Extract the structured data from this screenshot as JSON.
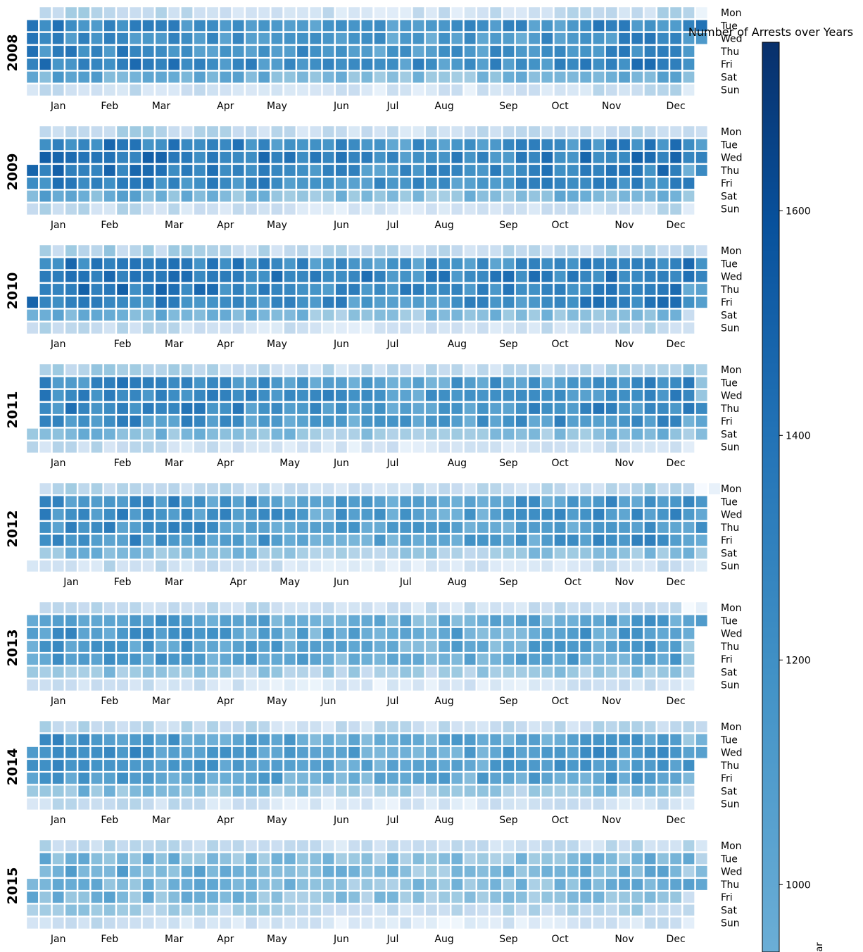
{
  "chart_data": {
    "type": "heatmap",
    "title": "Number of Arrests over Years",
    "colorbar_label": "ar",
    "colormap": [
      "#f7fbff",
      "#deebf7",
      "#c6dbef",
      "#9ecae1",
      "#6baed6",
      "#4292c6",
      "#2171b5",
      "#08519c",
      "#08306b"
    ],
    "value_range": [
      940,
      1750
    ],
    "colorbar_ticks": [
      1000,
      1200,
      1400,
      1600
    ],
    "weekday_labels": [
      "Mon",
      "Tue",
      "Wed",
      "Thu",
      "Fri",
      "Sat",
      "Sun"
    ],
    "month_labels": [
      "Jan",
      "Feb",
      "Mar",
      "Apr",
      "May",
      "Jun",
      "Jul",
      "Aug",
      "Sep",
      "Oct",
      "Nov",
      "Dec"
    ],
    "grid": false,
    "years": [
      {
        "year": "2008",
        "typical_by_weekday": {
          "Mon": 1060,
          "Tue": 1420,
          "Wed": 1400,
          "Thu": 1410,
          "Fri": 1440,
          "Sat": 1280,
          "Sun": 1030
        }
      },
      {
        "year": "2009",
        "typical_by_weekday": {
          "Mon": 1080,
          "Tue": 1440,
          "Wed": 1480,
          "Thu": 1460,
          "Fri": 1440,
          "Sat": 1260,
          "Sun": 1030
        }
      },
      {
        "year": "2010",
        "typical_by_weekday": {
          "Mon": 1100,
          "Tue": 1450,
          "Wed": 1490,
          "Thu": 1470,
          "Fri": 1450,
          "Sat": 1250,
          "Sun": 1040
        }
      },
      {
        "year": "2011",
        "typical_by_weekday": {
          "Mon": 1090,
          "Tue": 1400,
          "Wed": 1420,
          "Thu": 1420,
          "Fri": 1400,
          "Sat": 1230,
          "Sun": 1030
        }
      },
      {
        "year": "2012",
        "typical_by_weekday": {
          "Mon": 1080,
          "Tue": 1380,
          "Wed": 1380,
          "Thu": 1370,
          "Fri": 1380,
          "Sat": 1210,
          "Sun": 1020
        }
      },
      {
        "year": "2013",
        "typical_by_weekday": {
          "Mon": 1060,
          "Tue": 1330,
          "Wed": 1350,
          "Thu": 1340,
          "Fri": 1330,
          "Sat": 1180,
          "Sun": 1000
        }
      },
      {
        "year": "2014",
        "typical_by_weekday": {
          "Mon": 1080,
          "Tue": 1350,
          "Wed": 1380,
          "Thu": 1360,
          "Fri": 1350,
          "Sat": 1200,
          "Sun": 1020
        }
      },
      {
        "year": "2015",
        "typical_by_weekday": {
          "Mon": 1060,
          "Tue": 1240,
          "Wed": 1260,
          "Thu": 1250,
          "Fri": 1230,
          "Sat": 1120,
          "Sun": 1000
        }
      }
    ]
  }
}
